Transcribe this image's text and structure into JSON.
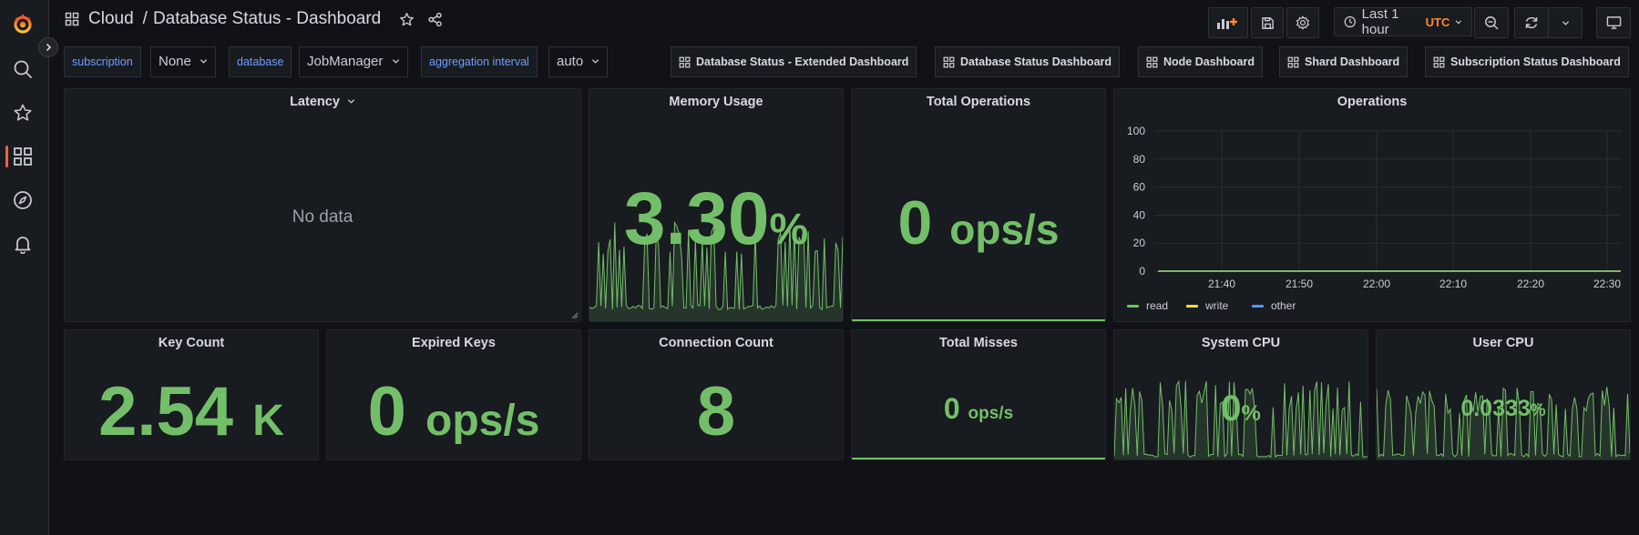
{
  "header": {
    "breadcrumb_root": "Cloud",
    "breadcrumb_separator": "/",
    "dashboard_title": "Database Status - Dashboard"
  },
  "toolbar": {
    "time_range": "Last 1 hour",
    "timezone": "UTC"
  },
  "variables": [
    {
      "label": "subscription",
      "value": "None"
    },
    {
      "label": "database",
      "value": "JobManager"
    },
    {
      "label": "aggregation interval",
      "value": "auto"
    }
  ],
  "dashboard_links": [
    "Database Status - Extended Dashboard",
    "Database Status Dashboard",
    "Node Dashboard",
    "Shard Dashboard",
    "Subscription Status Dashboard"
  ],
  "panels": {
    "latency": {
      "title": "Latency",
      "message": "No data"
    },
    "memory": {
      "title": "Memory Usage",
      "value": "3.30",
      "unit": "%"
    },
    "total_ops": {
      "title": "Total Operations",
      "value": "0",
      "unit": "ops/s"
    },
    "operations": {
      "title": "Operations"
    },
    "key_count": {
      "title": "Key Count",
      "value": "2.54",
      "unit": "K"
    },
    "expired_keys": {
      "title": "Expired Keys",
      "value": "0",
      "unit": "ops/s"
    },
    "connection_count": {
      "title": "Connection Count",
      "value": "8"
    },
    "total_misses": {
      "title": "Total Misses",
      "value": "0",
      "unit": "ops/s"
    },
    "system_cpu": {
      "title": "System CPU",
      "value": "0",
      "unit": "%"
    },
    "user_cpu": {
      "title": "User CPU",
      "value": "0.0333",
      "unit": "%"
    }
  },
  "chart_data": {
    "type": "line",
    "title": "Operations",
    "x": [
      "21:40",
      "21:50",
      "22:00",
      "22:10",
      "22:20",
      "22:30"
    ],
    "y_ticks": [
      0,
      20,
      40,
      60,
      80,
      100
    ],
    "ylim": [
      0,
      100
    ],
    "series": [
      {
        "name": "read",
        "color": "#73bf69",
        "values": [
          0,
          0,
          0,
          0,
          0,
          0
        ]
      },
      {
        "name": "write",
        "color": "#fade2a",
        "values": [
          0,
          0,
          0,
          0,
          0,
          0
        ]
      },
      {
        "name": "other",
        "color": "#5794f2",
        "values": [
          0,
          0,
          0,
          0,
          0,
          0
        ]
      }
    ],
    "grid": true,
    "legend": "bottom-left"
  },
  "colors": {
    "stat_green": "#73bf69",
    "brand": "#f55f3e",
    "accent_utc": "#ff8833",
    "variable_label": "#6e9fff"
  },
  "icons": {
    "logo": "grafana-logo-icon",
    "search": "search-icon",
    "starred": "star-icon",
    "dashboards": "dashboards-grid-icon",
    "explore": "compass-icon",
    "alerting": "bell-icon"
  }
}
